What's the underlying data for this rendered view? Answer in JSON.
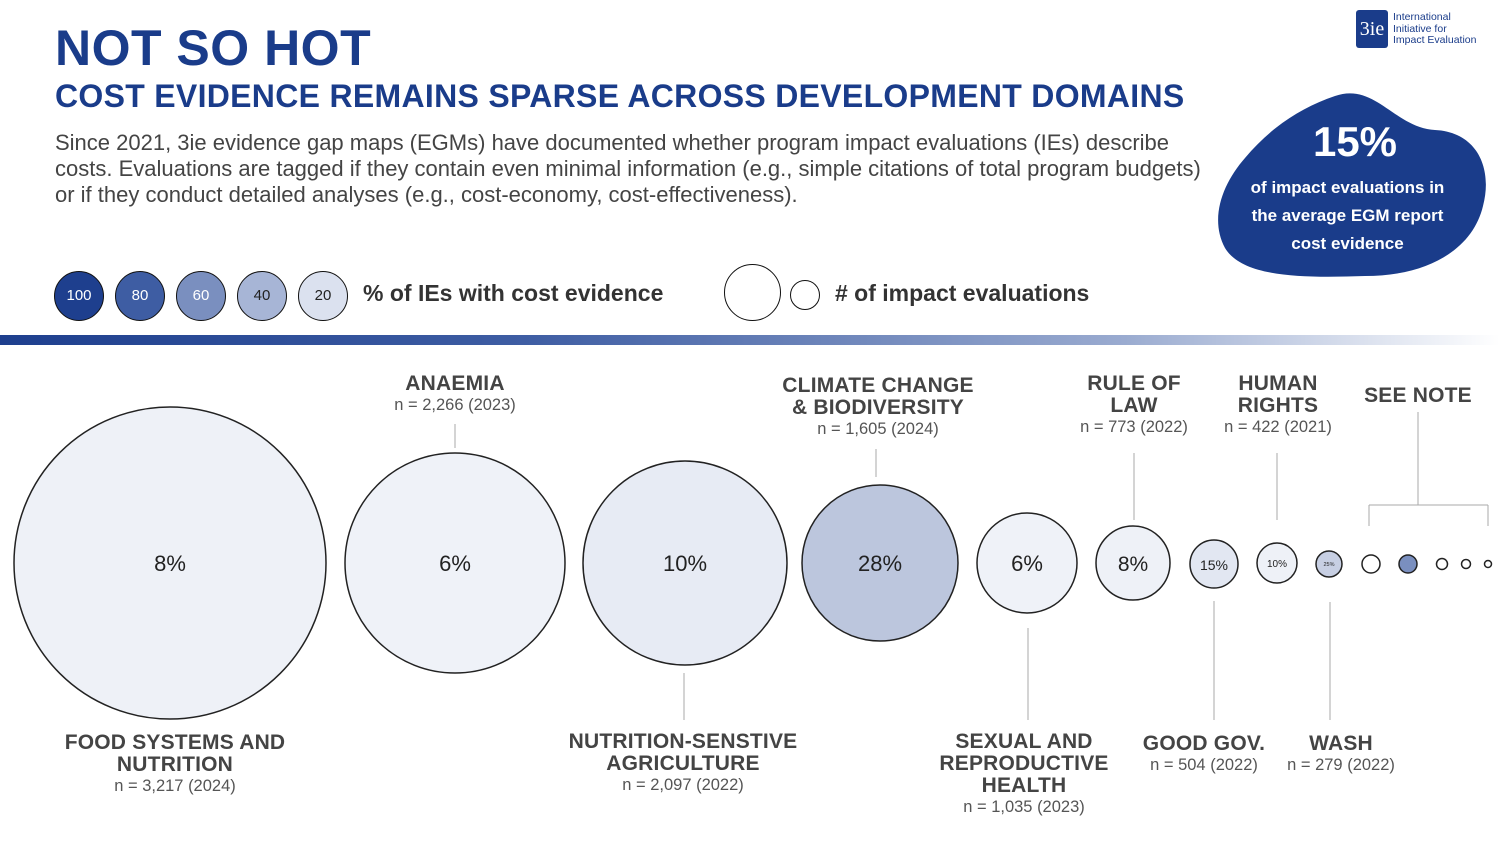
{
  "header": {
    "title": "NOT SO HOT",
    "subtitle": "COST EVIDENCE REMAINS SPARSE ACROSS DEVELOPMENT DOMAINS",
    "intro": "Since 2021, 3ie evidence gap maps (EGMs) have documented whether program impact evaluations (IEs) describe costs. Evaluations are tagged if they contain even minimal information (e.g., simple citations of total program budgets) or if they conduct detailed analyses (e.g., cost-economy, cost-effectiveness)."
  },
  "logo": {
    "mark": "3ie",
    "line1": "International",
    "line2": "Initiative for",
    "line3": "Impact Evaluation"
  },
  "callout": {
    "value": "15%",
    "line1": "of impact evaluations in",
    "line2": "the average EGM report",
    "line3": "cost evidence",
    "color": "#1a3c8a"
  },
  "legend": {
    "shade_levels": [
      "100",
      "80",
      "60",
      "40",
      "20"
    ],
    "shade_label": "% of IEs with cost evidence",
    "size_label": "# of impact evaluations"
  },
  "colors": {
    "shade_100": "#1e3f8e",
    "shade_80": "#3e5da3",
    "shade_60": "#7a8fbf",
    "shade_40": "#a7b5d6",
    "shade_20": "#dbe1ef"
  },
  "chart_data": {
    "type": "bubble",
    "encoding": "bubble area = number of impact evaluations; fill shade = % of IEs with cost evidence",
    "series": [
      {
        "domain": "FOOD SYSTEMS AND NUTRITION",
        "n": 3217,
        "n_label": "n = 3,217 (2024)",
        "year": 2024,
        "pct": 8,
        "pct_label": "8%"
      },
      {
        "domain": "ANAEMIA",
        "n": 2266,
        "n_label": "n = 2,266 (2023)",
        "year": 2023,
        "pct": 6,
        "pct_label": "6%"
      },
      {
        "domain": "NUTRITION-SENSTIVE AGRICULTURE",
        "n": 2097,
        "n_label": "n = 2,097 (2022)",
        "year": 2022,
        "pct": 10,
        "pct_label": "10%"
      },
      {
        "domain": "CLIMATE CHANGE & BIODIVERSITY",
        "n": 1605,
        "n_label": "n = 1,605 (2024)",
        "year": 2024,
        "pct": 28,
        "pct_label": "28%"
      },
      {
        "domain": "SEXUAL AND REPRODUCTIVE HEALTH",
        "n": 1035,
        "n_label": "n = 1,035 (2023)",
        "year": 2023,
        "pct": 6,
        "pct_label": "6%"
      },
      {
        "domain": "RULE OF LAW",
        "n": 773,
        "n_label": "n = 773 (2022)",
        "year": 2022,
        "pct": 8,
        "pct_label": "8%"
      },
      {
        "domain": "GOOD GOV.",
        "n": 504,
        "n_label": "n = 504 (2022)",
        "year": 2022,
        "pct": 15,
        "pct_label": "15%"
      },
      {
        "domain": "HUMAN RIGHTS",
        "n": 422,
        "n_label": "n = 422 (2021)",
        "year": 2021,
        "pct": 10,
        "pct_label": "10%"
      },
      {
        "domain": "WASH",
        "n": 279,
        "n_label": "n = 279 (2022)",
        "year": 2022,
        "pct": 25,
        "pct_label": "25%"
      }
    ],
    "see_note": {
      "label": "SEE NOTE"
    }
  }
}
